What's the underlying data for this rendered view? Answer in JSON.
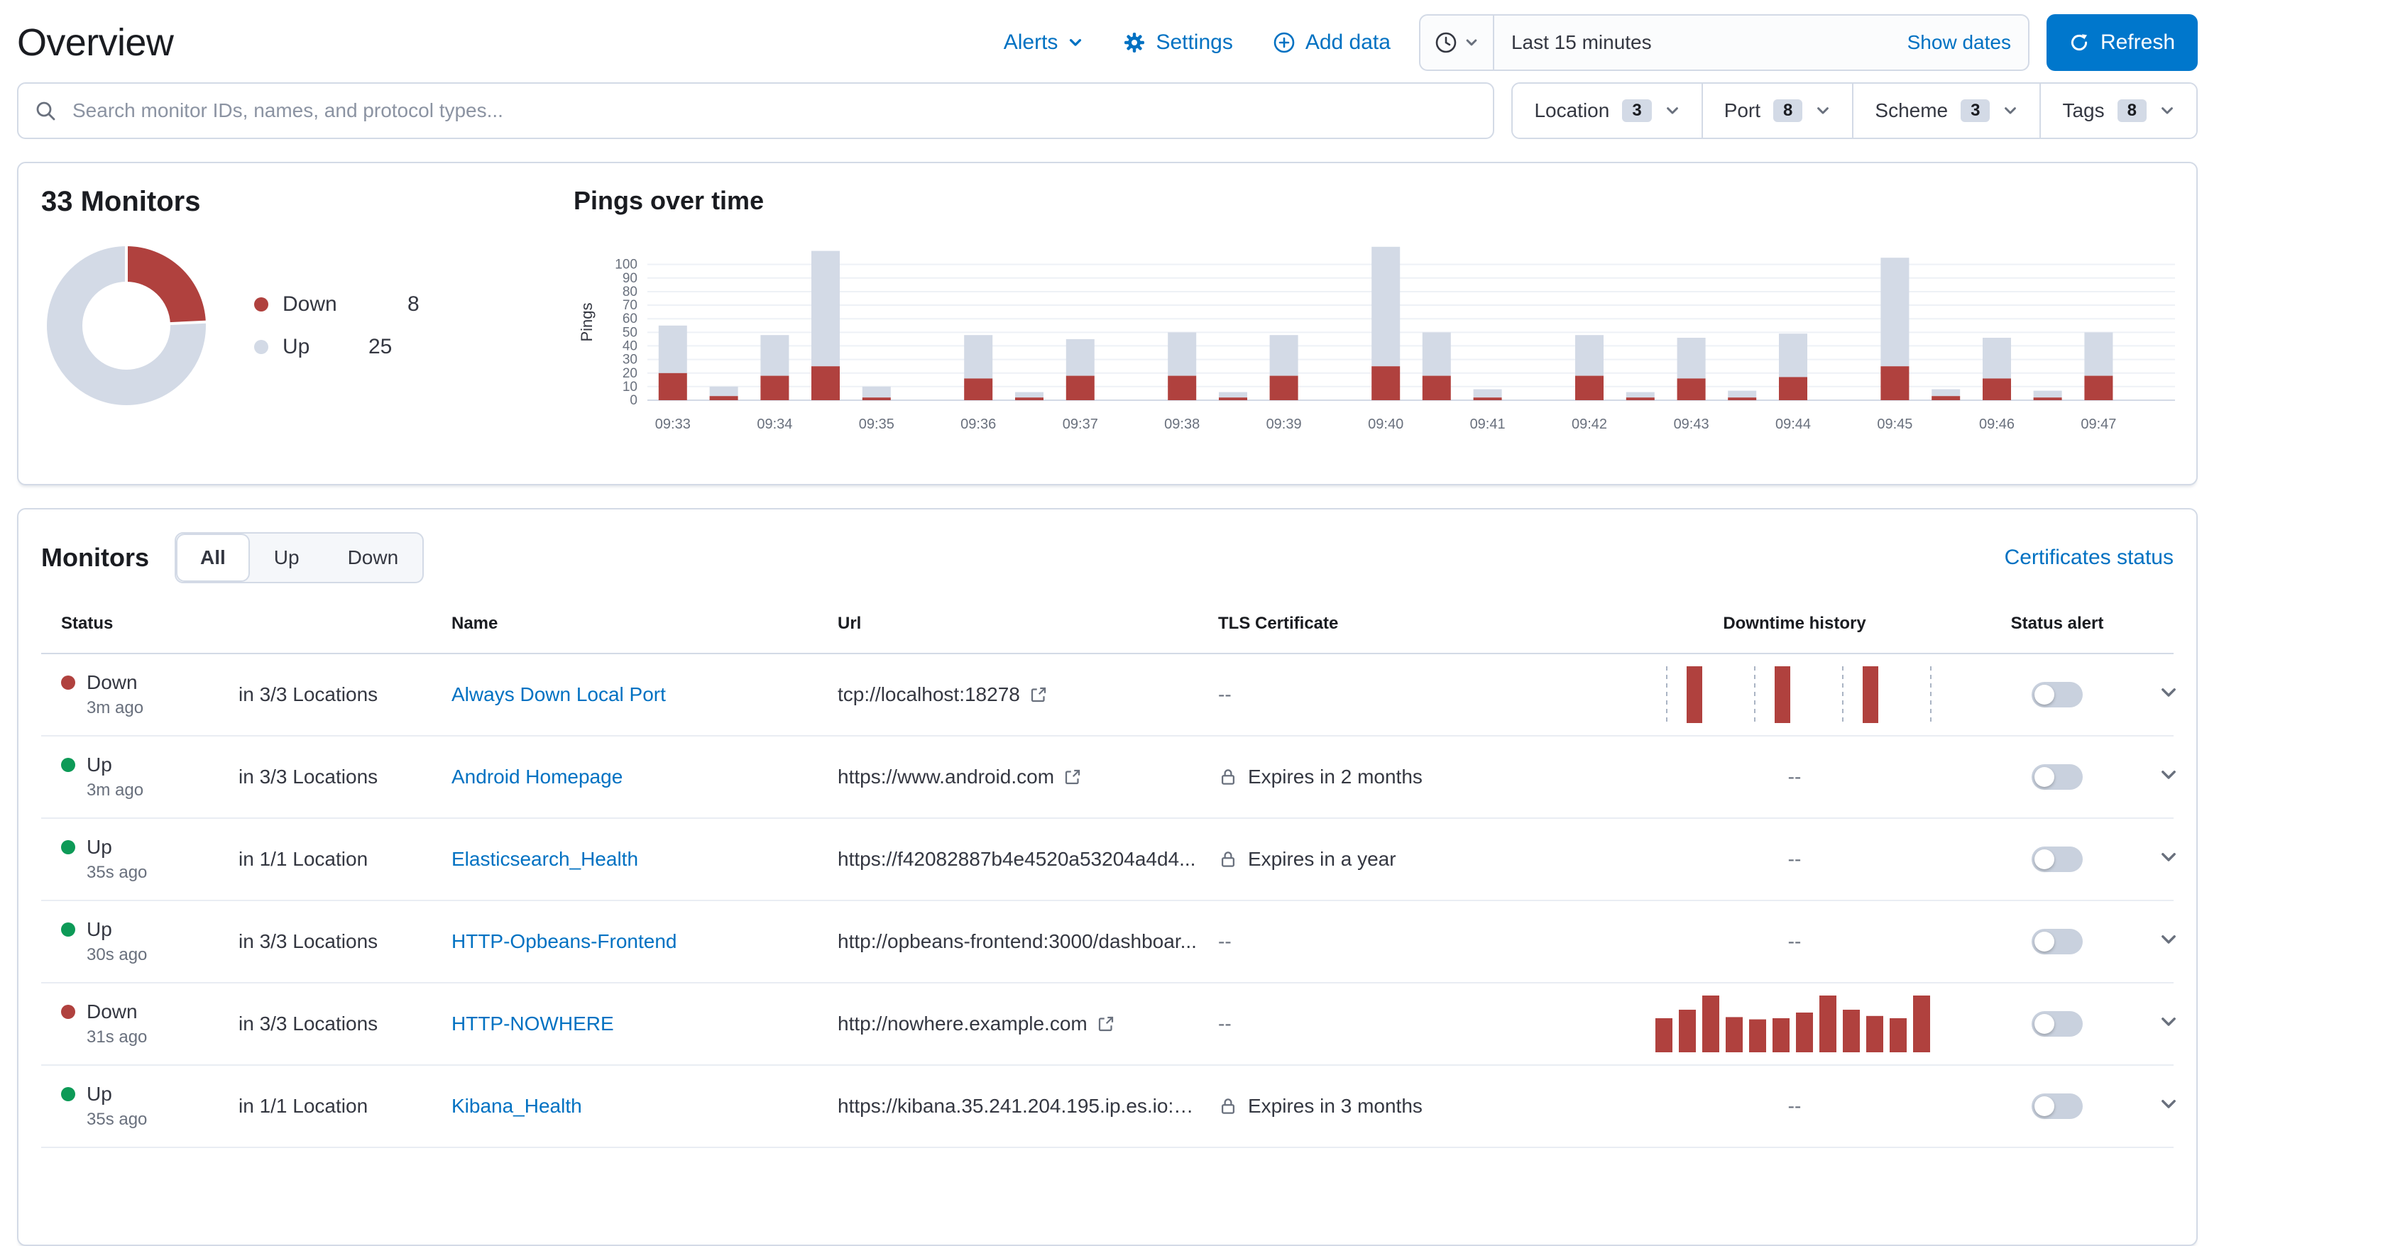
{
  "page": {
    "title": "Overview"
  },
  "header": {
    "alerts_label": "Alerts",
    "settings_label": "Settings",
    "add_data_label": "Add data",
    "time_range": "Last 15 minutes",
    "show_dates_label": "Show dates",
    "refresh_label": "Refresh"
  },
  "search": {
    "placeholder": "Search monitor IDs, names, and protocol types..."
  },
  "filters": [
    {
      "label": "Location",
      "count": "3"
    },
    {
      "label": "Port",
      "count": "8"
    },
    {
      "label": "Scheme",
      "count": "3"
    },
    {
      "label": "Tags",
      "count": "8"
    }
  ],
  "colors": {
    "down_red": "#b0413e",
    "up_bar_gray": "#d3dae6",
    "up_green": "#0d9a57",
    "link_blue": "#0071c2",
    "primary_button_blue": "#0077cc"
  },
  "snapshot": {
    "title": "33 Monitors",
    "legend": [
      {
        "label": "Down",
        "value": "8"
      },
      {
        "label": "Up",
        "value": "25"
      }
    ]
  },
  "pings": {
    "title": "Pings over time",
    "ylabel": "Pings"
  },
  "chart_data": [
    {
      "type": "pie",
      "title": "33 Monitors",
      "slices": [
        {
          "label": "Down",
          "value": 8,
          "color": "#b0413e"
        },
        {
          "label": "Up",
          "value": 25,
          "color": "#d3dae6"
        }
      ]
    },
    {
      "type": "bar",
      "stacked": true,
      "title": "Pings over time",
      "ylabel": "Pings",
      "ylim": [
        0,
        100
      ],
      "yticks": [
        0,
        10,
        20,
        30,
        40,
        50,
        60,
        70,
        80,
        90,
        100
      ],
      "x_labels": [
        "09:33",
        "09:34",
        "09:35",
        "09:36",
        "09:37",
        "09:38",
        "09:39",
        "09:40",
        "09:41",
        "09:42",
        "09:43",
        "09:44",
        "09:45",
        "09:46",
        "09:47"
      ],
      "bars_per_label": 2,
      "legend_position": "none",
      "grid": true,
      "series": [
        {
          "name": "Down",
          "color": "#b0413e",
          "values": [
            20,
            3,
            18,
            25,
            2,
            0,
            16,
            2,
            18,
            0,
            18,
            2,
            18,
            0,
            25,
            18,
            2,
            0,
            18,
            2,
            16,
            2,
            17,
            0,
            25,
            3,
            16,
            2,
            18,
            0
          ]
        },
        {
          "name": "Up",
          "color": "#d3dae6",
          "values": [
            35,
            7,
            30,
            85,
            8,
            0,
            32,
            4,
            27,
            0,
            32,
            4,
            30,
            0,
            88,
            32,
            6,
            0,
            30,
            4,
            30,
            5,
            32,
            0,
            80,
            5,
            30,
            5,
            32,
            0
          ]
        }
      ]
    }
  ],
  "monitors": {
    "title": "Monitors",
    "tabs": [
      "All",
      "Up",
      "Down"
    ],
    "selected_tab": "All",
    "certificates_link": "Certificates status",
    "empty_value": "--",
    "columns": {
      "status": "Status",
      "name": "Name",
      "url": "Url",
      "tls": "TLS Certificate",
      "history": "Downtime history",
      "alert": "Status alert"
    },
    "rows": [
      {
        "status": "Down",
        "ago": "3m ago",
        "locations": "in 3/3 Locations",
        "name": "Always Down Local Port",
        "url": "tcp://localhost:18278",
        "external_link": true,
        "tls": "--",
        "history": {
          "type": "sparse",
          "values": [
            100,
            100,
            100
          ]
        },
        "alert_enabled": false
      },
      {
        "status": "Up",
        "ago": "3m ago",
        "locations": "in 3/3 Locations",
        "name": "Android Homepage",
        "url": "https://www.android.com",
        "external_link": true,
        "tls": "Expires in 2 months",
        "history": null,
        "alert_enabled": false
      },
      {
        "status": "Up",
        "ago": "35s ago",
        "locations": "in 1/1 Location",
        "name": "Elasticsearch_Health",
        "url": "https://f42082887b4e4520a53204a4d4...",
        "external_link": false,
        "tls": "Expires in a year",
        "history": null,
        "alert_enabled": false
      },
      {
        "status": "Up",
        "ago": "30s ago",
        "locations": "in 3/3 Locations",
        "name": "HTTP-Opbeans-Frontend",
        "url": "http://opbeans-frontend:3000/dashboar...",
        "external_link": false,
        "tls": "--",
        "history": null,
        "alert_enabled": false
      },
      {
        "status": "Down",
        "ago": "31s ago",
        "locations": "in 3/3 Locations",
        "name": "HTTP-NOWHERE",
        "url": "http://nowhere.example.com",
        "external_link": true,
        "tls": "--",
        "history": {
          "type": "dense",
          "values": [
            60,
            75,
            100,
            62,
            58,
            60,
            70,
            100,
            75,
            64,
            60,
            100
          ]
        },
        "alert_enabled": false
      },
      {
        "status": "Up",
        "ago": "35s ago",
        "locations": "in 1/1 Location",
        "name": "Kibana_Health",
        "url": "https://kibana.35.241.204.195.ip.es.io:4...",
        "external_link": false,
        "tls": "Expires in 3 months",
        "history": null,
        "alert_enabled": false
      }
    ]
  }
}
